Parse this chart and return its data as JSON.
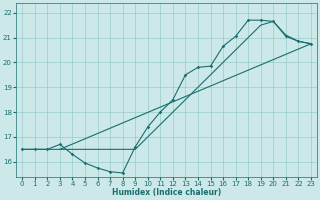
{
  "xlabel": "Humidex (Indice chaleur)",
  "bg_color": "#cce8e8",
  "grid_color": "#99cccc",
  "line_color": "#1a6e6e",
  "xlim": [
    -0.5,
    23.5
  ],
  "ylim": [
    15.4,
    22.4
  ],
  "xticks": [
    0,
    1,
    2,
    3,
    4,
    5,
    6,
    7,
    8,
    9,
    10,
    11,
    12,
    13,
    14,
    15,
    16,
    17,
    18,
    19,
    20,
    21,
    22,
    23
  ],
  "yticks": [
    16,
    17,
    18,
    19,
    20,
    21,
    22
  ],
  "line1_x": [
    0,
    1,
    2,
    3,
    4,
    5,
    6,
    7,
    8,
    9,
    10,
    11,
    12,
    13,
    14,
    15,
    16,
    17,
    18,
    19,
    20,
    21,
    22,
    23
  ],
  "line1_y": [
    16.5,
    16.5,
    16.5,
    16.7,
    16.3,
    15.95,
    15.75,
    15.6,
    15.55,
    16.6,
    17.4,
    18.0,
    18.5,
    19.5,
    19.8,
    19.85,
    20.65,
    21.05,
    21.7,
    21.7,
    21.65,
    21.05,
    20.85,
    20.75
  ],
  "line2_x": [
    0,
    1,
    2,
    3,
    4,
    5,
    6,
    7,
    8,
    9,
    10,
    11,
    12,
    13,
    14,
    15,
    16,
    17,
    18,
    19,
    20,
    21,
    22,
    23
  ],
  "line2_y": [
    16.5,
    16.5,
    16.5,
    16.5,
    16.5,
    16.5,
    16.5,
    16.5,
    16.5,
    16.5,
    17.0,
    17.5,
    18.0,
    18.5,
    19.0,
    19.5,
    20.0,
    20.5,
    21.0,
    21.5,
    21.65,
    21.1,
    20.85,
    20.75
  ],
  "line3_x": [
    3,
    23
  ],
  "line3_y": [
    16.5,
    20.75
  ]
}
